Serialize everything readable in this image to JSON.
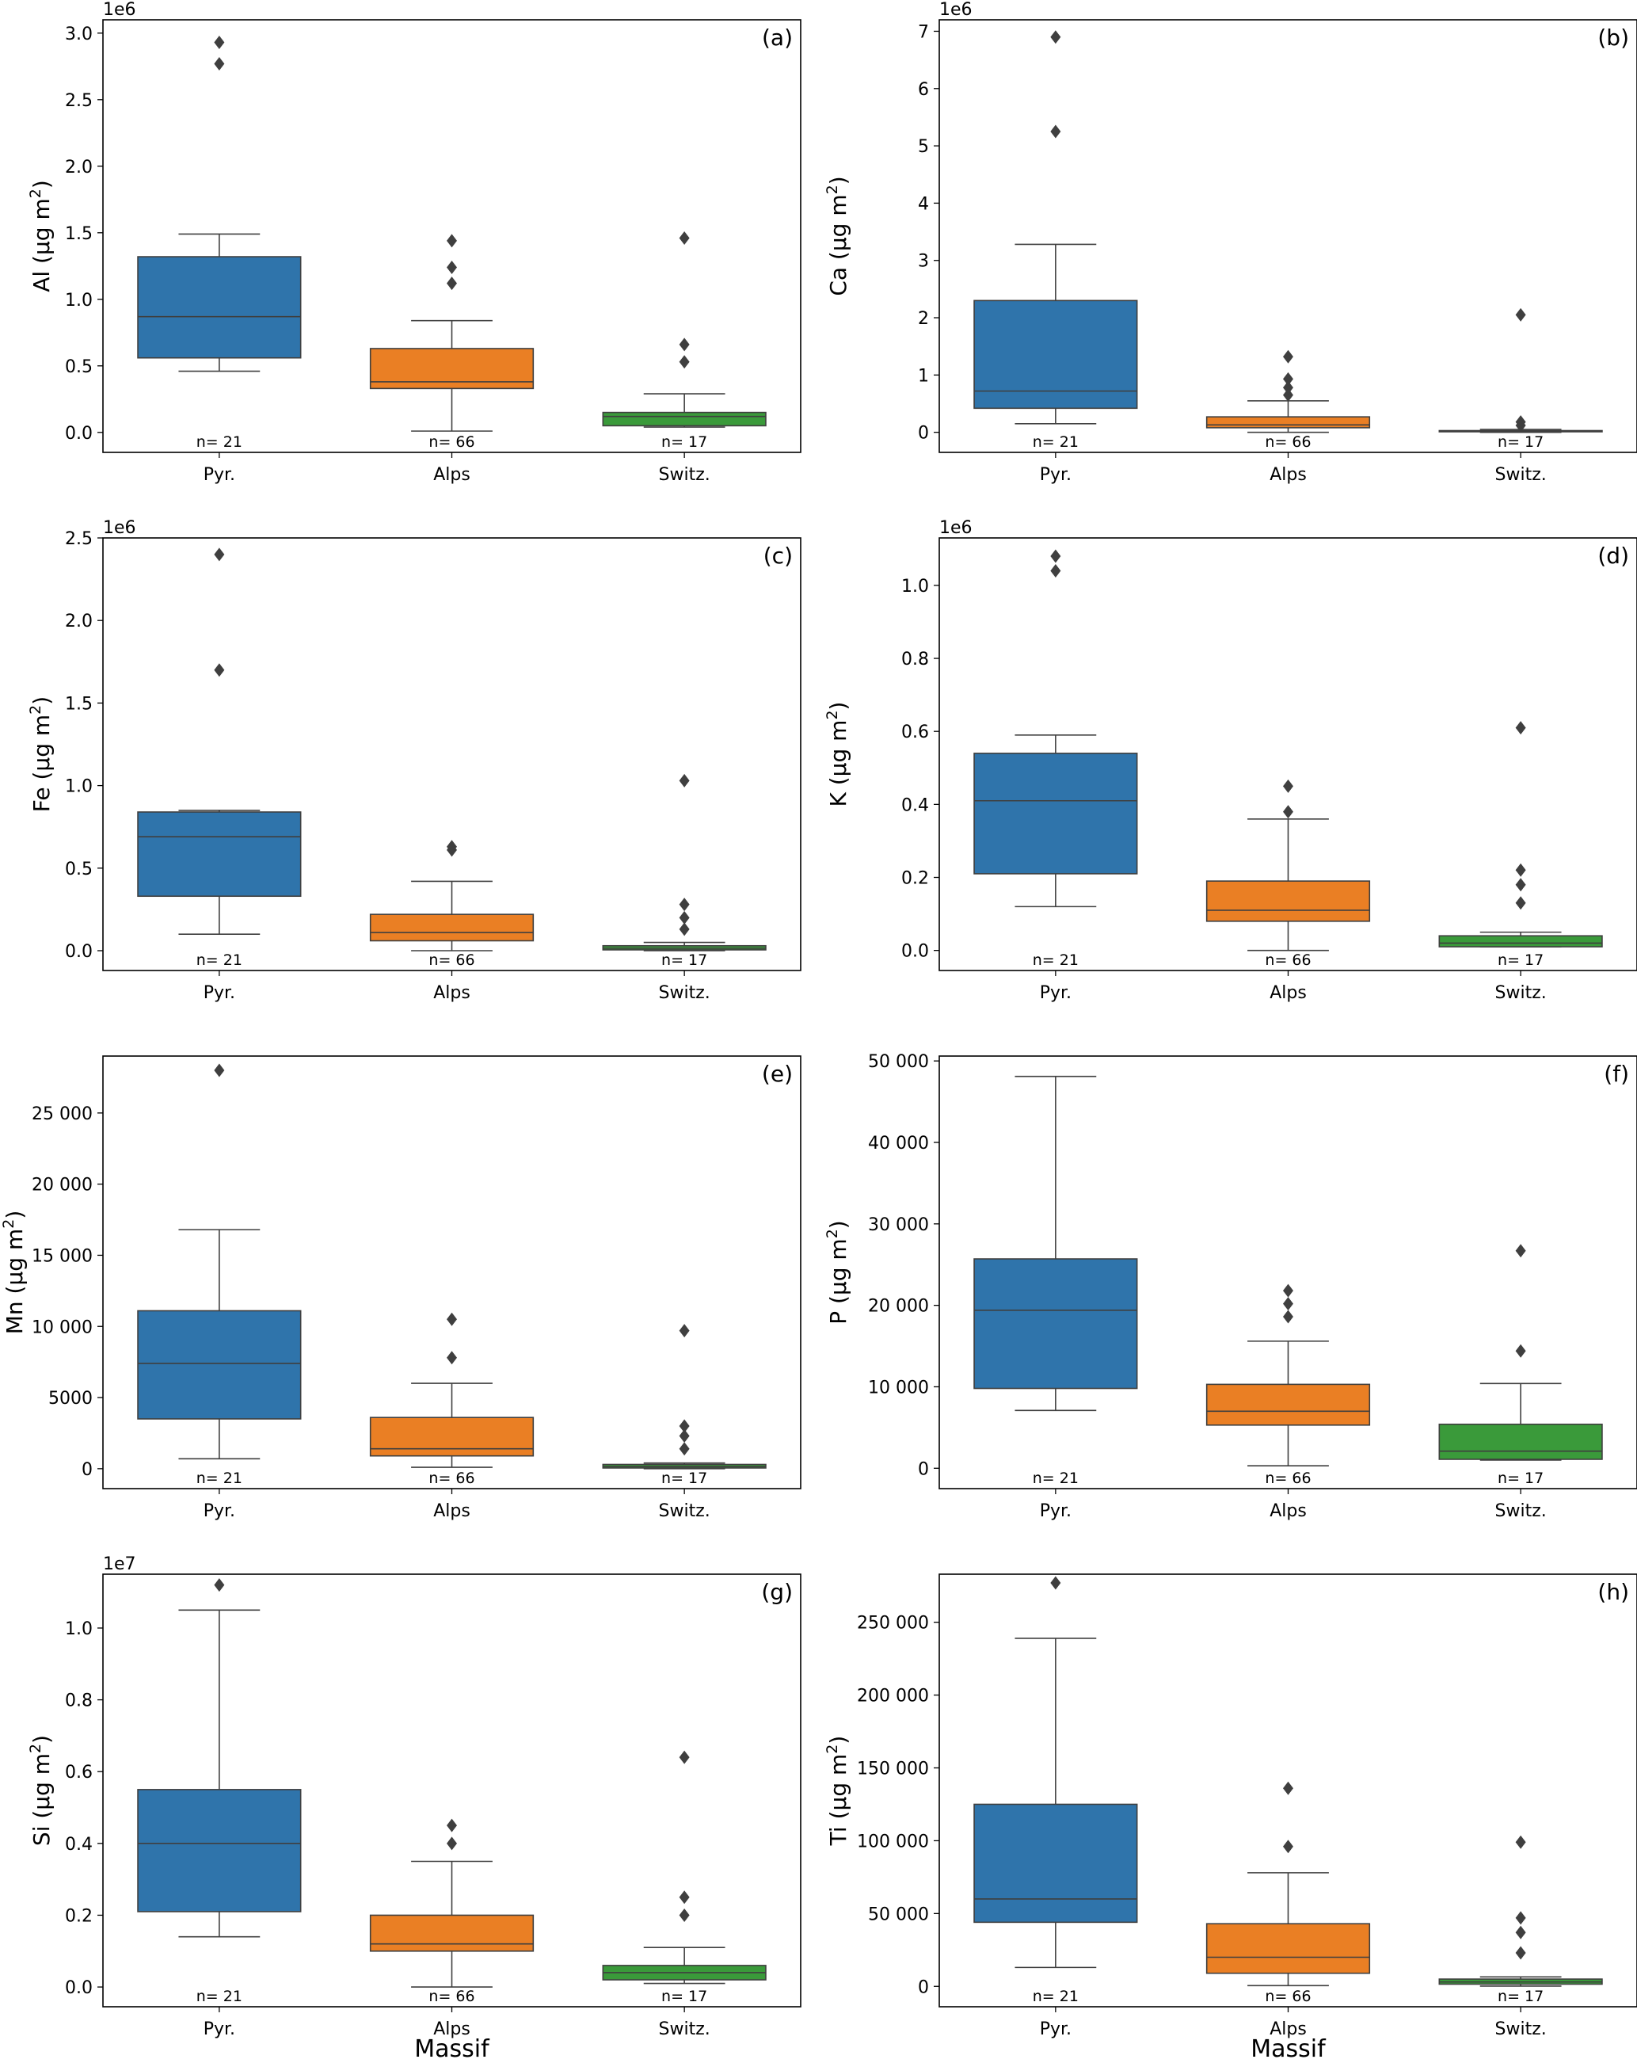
{
  "figure": {
    "xlabel": "Massif",
    "categories": [
      "Pyr.",
      "Alps",
      "Switz."
    ],
    "colors": [
      "#2f74ab",
      "#ea7f24",
      "#3a9a3a"
    ]
  },
  "chart_data": [
    {
      "type": "box",
      "panel": "(a)",
      "ylabel_main": "Al (µg m",
      "ylabel_sup": "2",
      "ylabel_end": ")",
      "scale": "1e6",
      "ylim": [
        -0.15,
        3.1
      ],
      "yticks": [
        0.0,
        0.5,
        1.0,
        1.5,
        2.0,
        2.5,
        3.0
      ],
      "ytick_labels": [
        "0.0",
        "0.5",
        "1.0",
        "1.5",
        "2.0",
        "2.5",
        "3.0"
      ],
      "boxes": [
        {
          "category": "Pyr.",
          "whislo": 0.46,
          "q1": 0.56,
          "med": 0.87,
          "q3": 1.32,
          "whishi": 1.49,
          "fliers": [
            2.77,
            2.93
          ],
          "n_label": "n= 21"
        },
        {
          "category": "Alps",
          "whislo": 0.01,
          "q1": 0.33,
          "med": 0.38,
          "q3": 0.63,
          "whishi": 0.84,
          "fliers": [
            1.12,
            1.24,
            1.44
          ],
          "n_label": "n= 66"
        },
        {
          "category": "Switz.",
          "whislo": 0.04,
          "q1": 0.05,
          "med": 0.12,
          "q3": 0.15,
          "whishi": 0.29,
          "fliers": [
            0.53,
            0.66,
            1.46
          ],
          "n_label": "n= 17"
        }
      ]
    },
    {
      "type": "box",
      "panel": "(b)",
      "ylabel_main": "Ca (µg m",
      "ylabel_sup": "2",
      "ylabel_end": ")",
      "scale": "1e6",
      "ylim": [
        -0.35,
        7.2
      ],
      "yticks": [
        0,
        1,
        2,
        3,
        4,
        5,
        6,
        7
      ],
      "ytick_labels": [
        "0",
        "1",
        "2",
        "3",
        "4",
        "5",
        "6",
        "7"
      ],
      "boxes": [
        {
          "category": "Pyr.",
          "whislo": 0.15,
          "q1": 0.42,
          "med": 0.72,
          "q3": 2.3,
          "whishi": 3.28,
          "fliers": [
            5.25,
            6.9
          ],
          "n_label": "n= 21"
        },
        {
          "category": "Alps",
          "whislo": 0.0,
          "q1": 0.08,
          "med": 0.13,
          "q3": 0.27,
          "whishi": 0.55,
          "fliers": [
            0.65,
            0.78,
            0.93,
            1.32
          ],
          "n_label": "n= 66"
        },
        {
          "category": "Switz.",
          "whislo": 0.0,
          "q1": 0.01,
          "med": 0.02,
          "q3": 0.03,
          "whishi": 0.05,
          "fliers": [
            0.12,
            0.18,
            2.05
          ],
          "n_label": "n= 17"
        }
      ]
    },
    {
      "type": "box",
      "panel": "(c)",
      "ylabel_main": "Fe (µg m",
      "ylabel_sup": "2",
      "ylabel_end": ")",
      "scale": "1e6",
      "ylim": [
        -0.12,
        2.5
      ],
      "yticks": [
        0.0,
        0.5,
        1.0,
        1.5,
        2.0,
        2.5
      ],
      "ytick_labels": [
        "0.0",
        "0.5",
        "1.0",
        "1.5",
        "2.0",
        "2.5"
      ],
      "boxes": [
        {
          "category": "Pyr.",
          "whislo": 0.1,
          "q1": 0.33,
          "med": 0.69,
          "q3": 0.84,
          "whishi": 0.85,
          "fliers": [
            1.7,
            2.4
          ],
          "n_label": "n= 21"
        },
        {
          "category": "Alps",
          "whislo": 0.0,
          "q1": 0.06,
          "med": 0.11,
          "q3": 0.22,
          "whishi": 0.42,
          "fliers": [
            0.61,
            0.63
          ],
          "n_label": "n= 66"
        },
        {
          "category": "Switz.",
          "whislo": 0.0,
          "q1": 0.005,
          "med": 0.015,
          "q3": 0.03,
          "whishi": 0.05,
          "fliers": [
            0.13,
            0.2,
            0.28,
            1.03
          ],
          "n_label": "n= 17"
        }
      ]
    },
    {
      "type": "box",
      "panel": "(d)",
      "ylabel_main": "K (µg m",
      "ylabel_sup": "2",
      "ylabel_end": ")",
      "scale": "1e6",
      "ylim": [
        -0.055,
        1.13
      ],
      "yticks": [
        0.0,
        0.2,
        0.4,
        0.6,
        0.8,
        1.0
      ],
      "ytick_labels": [
        "0.0",
        "0.2",
        "0.4",
        "0.6",
        "0.8",
        "1.0"
      ],
      "boxes": [
        {
          "category": "Pyr.",
          "whislo": 0.12,
          "q1": 0.21,
          "med": 0.41,
          "q3": 0.54,
          "whishi": 0.59,
          "fliers": [
            1.04,
            1.08
          ],
          "n_label": "n= 21"
        },
        {
          "category": "Alps",
          "whislo": 0.0,
          "q1": 0.08,
          "med": 0.11,
          "q3": 0.19,
          "whishi": 0.36,
          "fliers": [
            0.38,
            0.45
          ],
          "n_label": "n= 66"
        },
        {
          "category": "Switz.",
          "whislo": 0.01,
          "q1": 0.01,
          "med": 0.02,
          "q3": 0.04,
          "whishi": 0.05,
          "fliers": [
            0.13,
            0.18,
            0.22,
            0.61
          ],
          "n_label": "n= 17"
        }
      ]
    },
    {
      "type": "box",
      "panel": "(e)",
      "ylabel_main": "Mn (µg m",
      "ylabel_sup": "2",
      "ylabel_end": ")",
      "scale": "",
      "ylim": [
        -1400,
        29000
      ],
      "yticks": [
        0,
        5000,
        10000,
        15000,
        20000,
        25000
      ],
      "ytick_labels": [
        "0",
        "5000",
        "10 000",
        "15 000",
        "20 000",
        "25 000"
      ],
      "boxes": [
        {
          "category": "Pyr.",
          "whislo": 700,
          "q1": 3500,
          "med": 7400,
          "q3": 11100,
          "whishi": 16800,
          "fliers": [
            28000
          ],
          "n_label": "n= 21"
        },
        {
          "category": "Alps",
          "whislo": 100,
          "q1": 900,
          "med": 1400,
          "q3": 3600,
          "whishi": 6000,
          "fliers": [
            7800,
            10500
          ],
          "n_label": "n= 66"
        },
        {
          "category": "Switz.",
          "whislo": 0,
          "q1": 50,
          "med": 150,
          "q3": 300,
          "whishi": 400,
          "fliers": [
            1400,
            2300,
            3000,
            9700
          ],
          "n_label": "n= 17"
        }
      ]
    },
    {
      "type": "box",
      "panel": "(f)",
      "ylabel_main": "P (µg m",
      "ylabel_sup": "2",
      "ylabel_end": ")",
      "scale": "",
      "ylim": [
        -2500,
        50600
      ],
      "yticks": [
        0,
        10000,
        20000,
        30000,
        40000,
        50000
      ],
      "ytick_labels": [
        "0",
        "10 000",
        "20 000",
        "30 000",
        "40 000",
        "50 000"
      ],
      "boxes": [
        {
          "category": "Pyr.",
          "whislo": 7100,
          "q1": 9800,
          "med": 19400,
          "q3": 25700,
          "whishi": 48100,
          "fliers": [],
          "n_label": "n= 21"
        },
        {
          "category": "Alps",
          "whislo": 300,
          "q1": 5300,
          "med": 7000,
          "q3": 10300,
          "whishi": 15600,
          "fliers": [
            18600,
            20200,
            21800
          ],
          "n_label": "n= 66"
        },
        {
          "category": "Switz.",
          "whislo": 1000,
          "q1": 1100,
          "med": 2100,
          "q3": 5400,
          "whishi": 10400,
          "fliers": [
            14400,
            26700
          ],
          "n_label": "n= 17"
        }
      ]
    },
    {
      "type": "box",
      "panel": "(g)",
      "ylabel_main": "Si (µg m",
      "ylabel_sup": "2",
      "ylabel_end": ")",
      "scale": "1e7",
      "ylim": [
        -0.055,
        1.15
      ],
      "yticks": [
        0.0,
        0.2,
        0.4,
        0.6,
        0.8,
        1.0
      ],
      "ytick_labels": [
        "0.0",
        "0.2",
        "0.4",
        "0.6",
        "0.8",
        "1.0"
      ],
      "boxes": [
        {
          "category": "Pyr.",
          "whislo": 0.14,
          "q1": 0.21,
          "med": 0.4,
          "q3": 0.55,
          "whishi": 1.05,
          "fliers": [
            1.12
          ],
          "n_label": "n= 21"
        },
        {
          "category": "Alps",
          "whislo": 0.0,
          "q1": 0.1,
          "med": 0.12,
          "q3": 0.2,
          "whishi": 0.35,
          "fliers": [
            0.4,
            0.45
          ],
          "n_label": "n= 66"
        },
        {
          "category": "Switz.",
          "whislo": 0.01,
          "q1": 0.02,
          "med": 0.04,
          "q3": 0.06,
          "whishi": 0.11,
          "fliers": [
            0.2,
            0.25,
            0.64
          ],
          "n_label": "n= 17"
        }
      ]
    },
    {
      "type": "box",
      "panel": "(h)",
      "ylabel_main": "Ti (µg m",
      "ylabel_sup": "2",
      "ylabel_end": ")",
      "scale": "",
      "ylim": [
        -14000,
        283000
      ],
      "yticks": [
        0,
        50000,
        100000,
        150000,
        200000,
        250000
      ],
      "ytick_labels": [
        "0",
        "50 000",
        "100 000",
        "150 000",
        "200 000",
        "250 000"
      ],
      "boxes": [
        {
          "category": "Pyr.",
          "whislo": 13000,
          "q1": 44000,
          "med": 60000,
          "q3": 125000,
          "whishi": 239000,
          "fliers": [
            277000
          ],
          "n_label": "n= 21"
        },
        {
          "category": "Alps",
          "whislo": 500,
          "q1": 9000,
          "med": 20000,
          "q3": 43000,
          "whishi": 78000,
          "fliers": [
            96000,
            136000
          ],
          "n_label": "n= 66"
        },
        {
          "category": "Switz.",
          "whislo": 200,
          "q1": 1500,
          "med": 3000,
          "q3": 5000,
          "whishi": 6500,
          "fliers": [
            23000,
            37000,
            47000,
            99000
          ],
          "n_label": "n= 17"
        }
      ]
    }
  ]
}
